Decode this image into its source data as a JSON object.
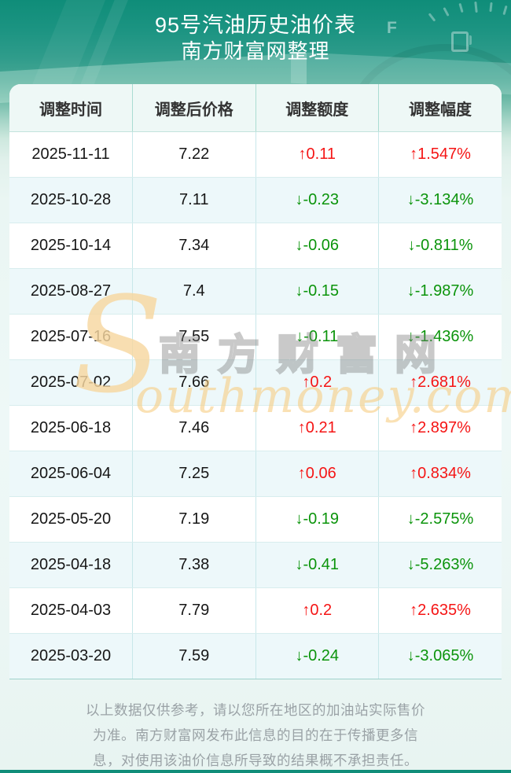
{
  "banner": {
    "title": "95号汽油历史油价表",
    "subtitle": "南方财富网整理"
  },
  "chart_data": {
    "type": "table",
    "title": "95号汽油历史油价表",
    "subtitle": "南方财富网整理",
    "columns": [
      "调整时间",
      "调整后价格",
      "调整额度",
      "调整幅度"
    ],
    "rows": [
      {
        "date": "2025-11-11",
        "price": "7.22",
        "change": "↑0.11",
        "percent": "↑1.547%",
        "direction": "up"
      },
      {
        "date": "2025-10-28",
        "price": "7.11",
        "change": "↓-0.23",
        "percent": "↓-3.134%",
        "direction": "down"
      },
      {
        "date": "2025-10-14",
        "price": "7.34",
        "change": "↓-0.06",
        "percent": "↓-0.811%",
        "direction": "down"
      },
      {
        "date": "2025-08-27",
        "price": "7.4",
        "change": "↓-0.15",
        "percent": "↓-1.987%",
        "direction": "down"
      },
      {
        "date": "2025-07-16",
        "price": "7.55",
        "change": "↓-0.11",
        "percent": "↓-1.436%",
        "direction": "down"
      },
      {
        "date": "2025-07-02",
        "price": "7.66",
        "change": "↑0.2",
        "percent": "↑2.681%",
        "direction": "up"
      },
      {
        "date": "2025-06-18",
        "price": "7.46",
        "change": "↑0.21",
        "percent": "↑2.897%",
        "direction": "up"
      },
      {
        "date": "2025-06-04",
        "price": "7.25",
        "change": "↑0.06",
        "percent": "↑0.834%",
        "direction": "up"
      },
      {
        "date": "2025-05-20",
        "price": "7.19",
        "change": "↓-0.19",
        "percent": "↓-2.575%",
        "direction": "down"
      },
      {
        "date": "2025-04-18",
        "price": "7.38",
        "change": "↓-0.41",
        "percent": "↓-5.263%",
        "direction": "down"
      },
      {
        "date": "2025-04-03",
        "price": "7.79",
        "change": "↑0.2",
        "percent": "↑2.635%",
        "direction": "up"
      },
      {
        "date": "2025-03-20",
        "price": "7.59",
        "change": "↓-0.24",
        "percent": "↓-3.065%",
        "direction": "down"
      }
    ]
  },
  "watermark": {
    "s": "S",
    "cn": "南方财富网",
    "en": "outhmoney.com"
  },
  "footer": {
    "disclaimer": "以上数据仅供参考，请以您所在地区的加油站实际售价为准。南方财富网发布此信息的目的在于传播更多信息，对使用该油价信息所导致的结果概不承担责任。"
  },
  "colors": {
    "up_red": "#f51515",
    "down_green": "#0b940b",
    "banner_teal": "#1c9482",
    "alt_row": "#edf8fa",
    "header_row": "#eef8f6",
    "watermark_orange": "#f6d7a0"
  }
}
